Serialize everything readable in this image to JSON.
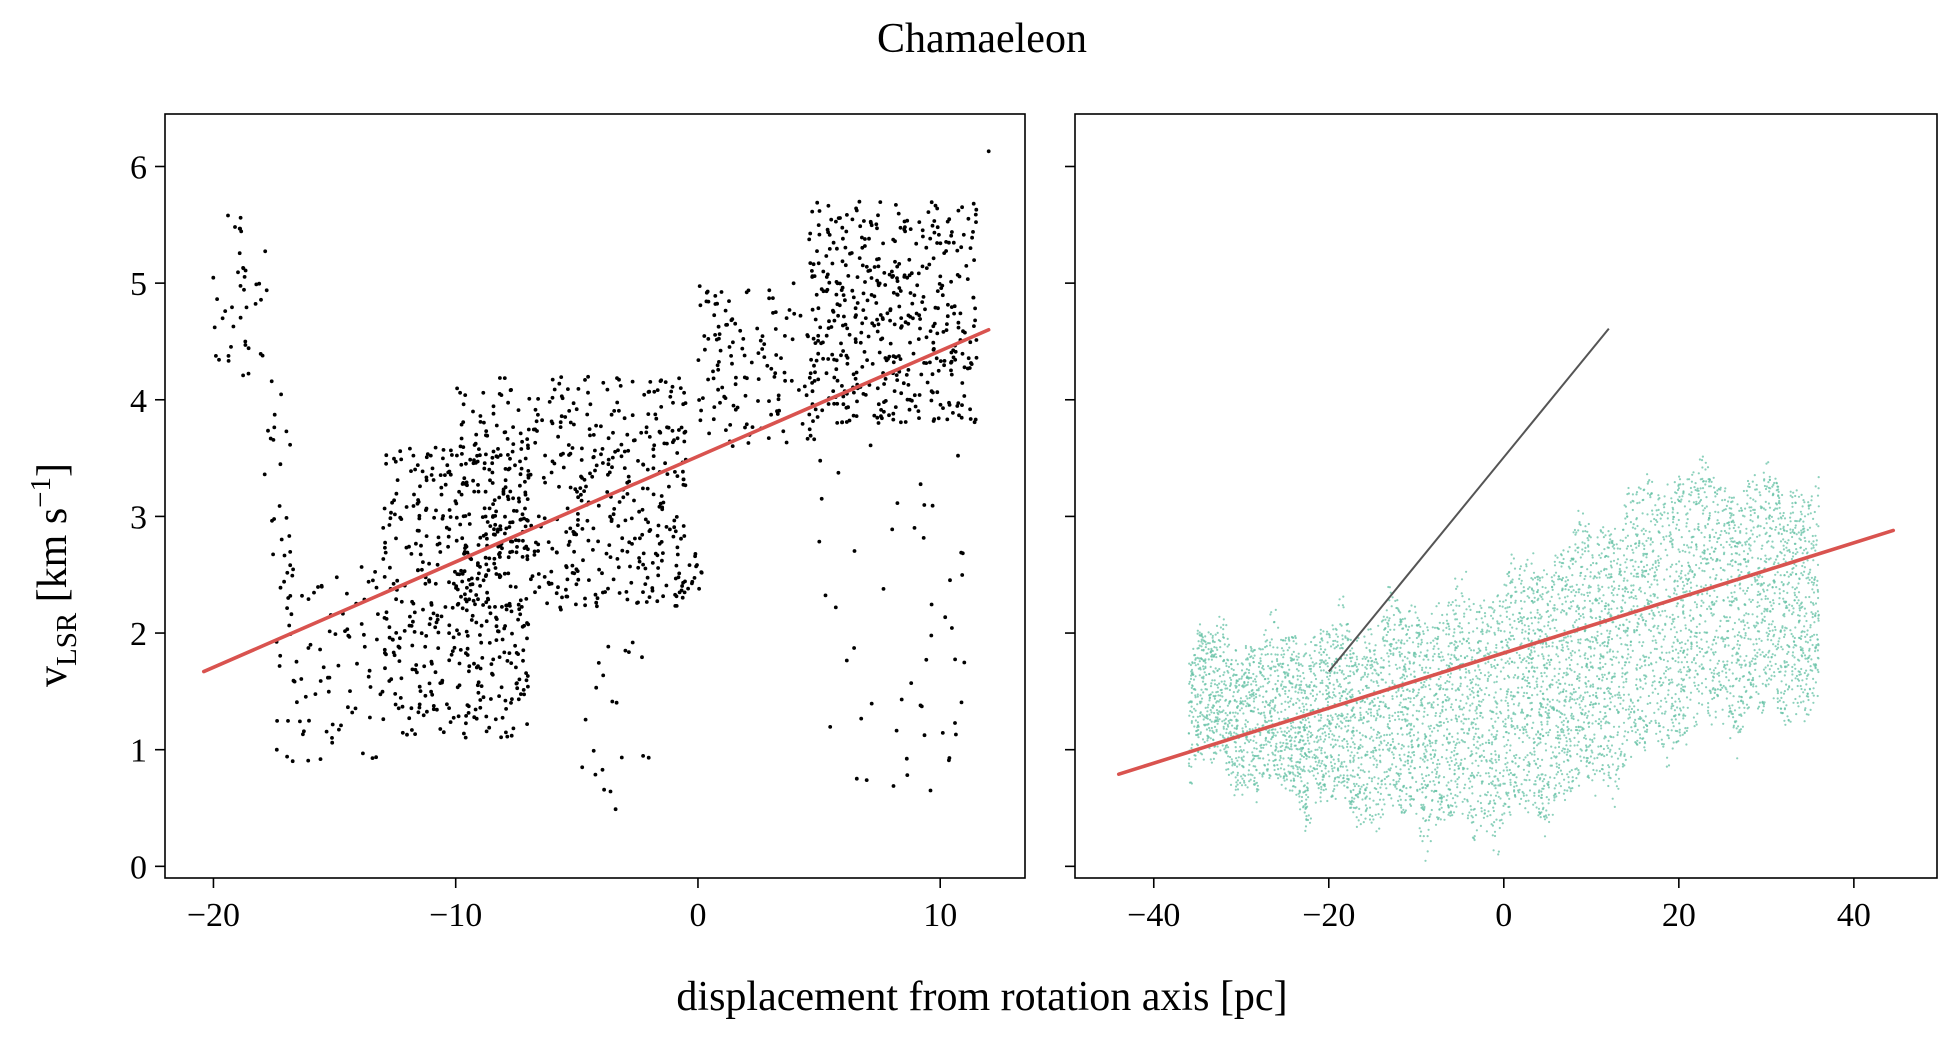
{
  "figure": {
    "title": "Chamaeleon",
    "xlabel": "displacement from rotation axis [pc]",
    "ylabel_main": "v",
    "ylabel_sub": "LSR",
    "ylabel_units": " [km s",
    "ylabel_sup": "−1",
    "ylabel_close": "]"
  },
  "colors": {
    "points_left": "#000000",
    "points_right": "#66c2a5",
    "fit_line": "#d9534f",
    "reference_line": "#555555"
  },
  "chart_data": [
    {
      "type": "scatter",
      "panel": "left",
      "xlim": [
        -22,
        13.5
      ],
      "ylim": [
        -0.1,
        6.45
      ],
      "xticks": [
        -20,
        -10,
        0,
        10
      ],
      "xtick_labels": [
        "−20",
        "−10",
        "0",
        "10"
      ],
      "yticks": [
        0,
        1,
        2,
        3,
        4,
        5,
        6
      ],
      "ytick_labels": [
        "0",
        "1",
        "2",
        "3",
        "4",
        "5",
        "6"
      ],
      "grid": false,
      "point_color": "#000000",
      "fit_line": {
        "x": [
          -20.4,
          12
        ],
        "y": [
          1.67,
          4.6
        ]
      },
      "clusters": [
        {
          "x": [
            -20.2,
            -17.8
          ],
          "y": [
            4.2,
            5.6
          ],
          "n": 40
        },
        {
          "x": [
            -18.0,
            -16.8
          ],
          "y": [
            2.6,
            4.2
          ],
          "n": 20
        },
        {
          "x": [
            -17.5,
            -13.0
          ],
          "y": [
            0.9,
            2.6
          ],
          "n": 90
        },
        {
          "x": [
            -13.0,
            -7.0
          ],
          "y": [
            1.1,
            3.6
          ],
          "n": 420
        },
        {
          "x": [
            -10.0,
            -0.5
          ],
          "y": [
            2.2,
            4.2
          ],
          "n": 520
        },
        {
          "x": [
            -5.0,
            -2.0
          ],
          "y": [
            0.5,
            2.0
          ],
          "n": 20
        },
        {
          "x": [
            -1.2,
            0.2
          ],
          "y": [
            2.3,
            2.7
          ],
          "n": 20
        },
        {
          "x": [
            0.0,
            5.0
          ],
          "y": [
            3.6,
            5.0
          ],
          "n": 130
        },
        {
          "x": [
            4.5,
            11.5
          ],
          "y": [
            3.8,
            5.7
          ],
          "n": 460
        },
        {
          "x": [
            5.0,
            11.0
          ],
          "y": [
            0.6,
            3.7
          ],
          "n": 50
        }
      ],
      "outliers": [
        {
          "x": 12.0,
          "y": 6.13
        },
        {
          "x": -19.4,
          "y": 5.58
        },
        {
          "x": -3.4,
          "y": 0.49
        },
        {
          "x": 9.6,
          "y": 0.65
        }
      ]
    },
    {
      "type": "scatter",
      "panel": "right",
      "xlim": [
        -49,
        49.5
      ],
      "ylim": [
        -0.1,
        6.45
      ],
      "xticks": [
        -40,
        -20,
        0,
        20,
        40
      ],
      "xtick_labels": [
        "−40",
        "−20",
        "0",
        "20",
        "40"
      ],
      "yticks": [
        0,
        1,
        2,
        3,
        4,
        5,
        6
      ],
      "ytick_labels": [],
      "grid": false,
      "point_color": "#66c2a5",
      "fit_line": {
        "x": [
          -44,
          44.5
        ],
        "y": [
          0.79,
          2.88
        ]
      },
      "reference_line": {
        "x": [
          -20,
          12
        ],
        "y": [
          1.67,
          4.61
        ]
      },
      "bands": [
        {
          "x": [
            -36,
            -20
          ],
          "y_low": [
            0.9,
            0.5
          ],
          "y_high": [
            1.9,
            2.0
          ],
          "n": 1400
        },
        {
          "x": [
            -20,
            0
          ],
          "y_low": [
            0.5,
            0.3
          ],
          "y_high": [
            2.0,
            2.4
          ],
          "n": 1800
        },
        {
          "x": [
            0,
            20
          ],
          "y_low": [
            0.3,
            1.1
          ],
          "y_high": [
            2.4,
            3.4
          ],
          "n": 2000
        },
        {
          "x": [
            20,
            36
          ],
          "y_low": [
            1.1,
            1.4
          ],
          "y_high": [
            3.4,
            3.2
          ],
          "n": 1500
        }
      ]
    }
  ]
}
